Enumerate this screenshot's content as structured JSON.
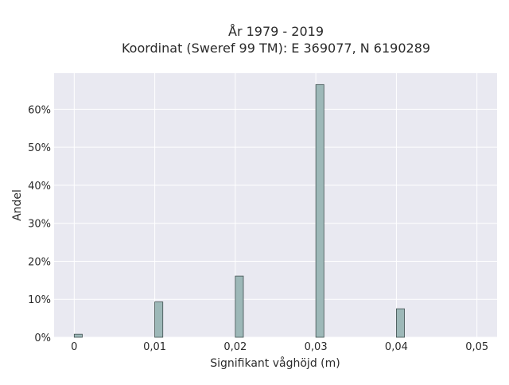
{
  "chart_data": {
    "type": "bar",
    "title_lines": [
      "År 1979 - 2019",
      "Koordinat (Sweref 99 TM): E 369077, N 6190289"
    ],
    "xlabel": "Signifikant våghöjd (m)",
    "ylabel": "Andel",
    "x_ticks": [
      0,
      0.01,
      0.02,
      0.03,
      0.04,
      0.05
    ],
    "x_tick_labels": [
      "0",
      "0,01",
      "0,02",
      "0,03",
      "0,04",
      "0,05"
    ],
    "xlim": [
      -0.0025,
      0.0525
    ],
    "y_ticks": [
      0,
      10,
      20,
      30,
      40,
      50,
      60
    ],
    "y_tick_labels": [
      "0%",
      "10%",
      "20%",
      "30%",
      "40%",
      "50%",
      "60%"
    ],
    "ylim": [
      0,
      69.5
    ],
    "bar_width": 0.001,
    "bars": [
      {
        "x": 0.0005,
        "value": 0.8
      },
      {
        "x": 0.0105,
        "value": 9.3
      },
      {
        "x": 0.0205,
        "value": 16.1
      },
      {
        "x": 0.0305,
        "value": 66.5
      },
      {
        "x": 0.0405,
        "value": 7.5
      }
    ],
    "grid": true,
    "colors": {
      "plot_background": "#e9e9f1",
      "grid": "#ffffff",
      "bar_fill": "#9db8b8",
      "bar_stroke": "#3f4f4f"
    }
  }
}
